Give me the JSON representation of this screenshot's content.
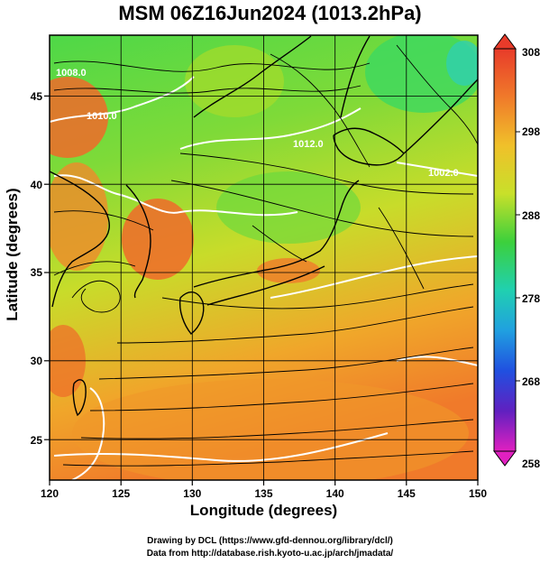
{
  "title": "MSM 06Z16Jun2024 (1013.2hPa)",
  "xlabel": "Longitude (degrees)",
  "ylabel": "Latitude  (degrees)",
  "x_ticks": [
    "120",
    "125",
    "130",
    "135",
    "140",
    "145",
    "150"
  ],
  "y_ticks": [
    "25",
    "30",
    "35",
    "40",
    "45"
  ],
  "colorbar": {
    "max": "308",
    "ticks": [
      "308",
      "298",
      "288",
      "278",
      "268",
      "258"
    ],
    "min": "258"
  },
  "contour_labels": [
    "1010.0",
    "1012.0",
    "1002.0",
    "1008.0"
  ],
  "credits": {
    "line1": "Drawing by DCL (https://www.gfd-dennou.org/library/dcl/)",
    "line2": "Data from http://database.rish.kyoto-u.ac.jp/arch/jmadata/"
  },
  "chart_data": {
    "type": "heatmap",
    "title": "MSM 06Z16Jun2024 (1013.2hPa)",
    "xlabel": "Longitude (degrees)",
    "ylabel": "Latitude  (degrees)",
    "xlim": [
      120,
      150
    ],
    "ylim": [
      22.4,
      47.6
    ],
    "color_range": [
      258,
      308
    ],
    "x_ticks": [
      120,
      125,
      130,
      135,
      140,
      145,
      150
    ],
    "y_ticks": [
      25,
      30,
      35,
      40,
      45
    ],
    "colorbar_ticks": [
      308,
      298,
      288,
      278,
      268,
      258
    ],
    "grid": true,
    "colors": {
      "land_high": "#e8552a",
      "mid": "#9fdc2c",
      "ocean_low": "#58e04a",
      "contour": "#ffffff",
      "coast": "#000000"
    }
  }
}
